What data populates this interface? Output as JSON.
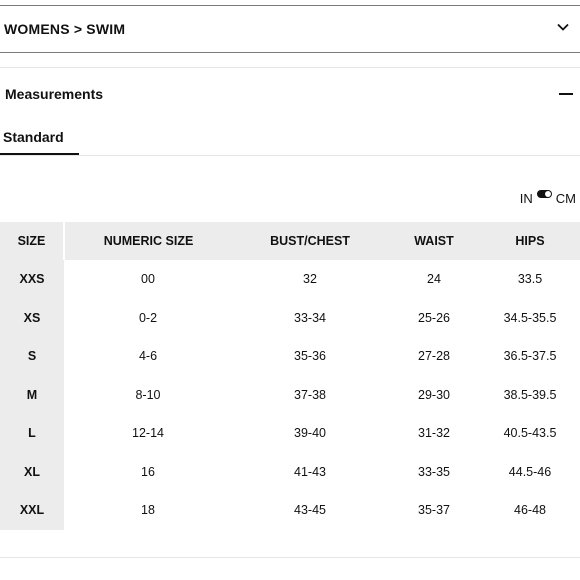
{
  "category": {
    "breadcrumb": "WOMENS > SWIM"
  },
  "measurements": {
    "title": "Measurements"
  },
  "tabs": [
    {
      "label": "Standard",
      "active": true
    }
  ],
  "units": {
    "left": "IN",
    "right": "CM",
    "selected": "CM"
  },
  "table": {
    "headers": [
      "SIZE",
      "NUMERIC SIZE",
      "BUST/CHEST",
      "WAIST",
      "HIPS"
    ],
    "rows": [
      [
        "XXS",
        "00",
        "32",
        "24",
        "33.5"
      ],
      [
        "XS",
        "0-2",
        "33-34",
        "25-26",
        "34.5-35.5"
      ],
      [
        "S",
        "4-6",
        "35-36",
        "27-28",
        "36.5-37.5"
      ],
      [
        "M",
        "8-10",
        "37-38",
        "29-30",
        "38.5-39.5"
      ],
      [
        "L",
        "12-14",
        "39-40",
        "31-32",
        "40.5-43.5"
      ],
      [
        "XL",
        "16",
        "41-43",
        "33-35",
        "44.5-46"
      ],
      [
        "XXL",
        "18",
        "43-45",
        "35-37",
        "46-48"
      ]
    ]
  },
  "colors": {
    "header_bg": "#ececec",
    "text": "#111111",
    "divider": "#e6e6e6"
  }
}
